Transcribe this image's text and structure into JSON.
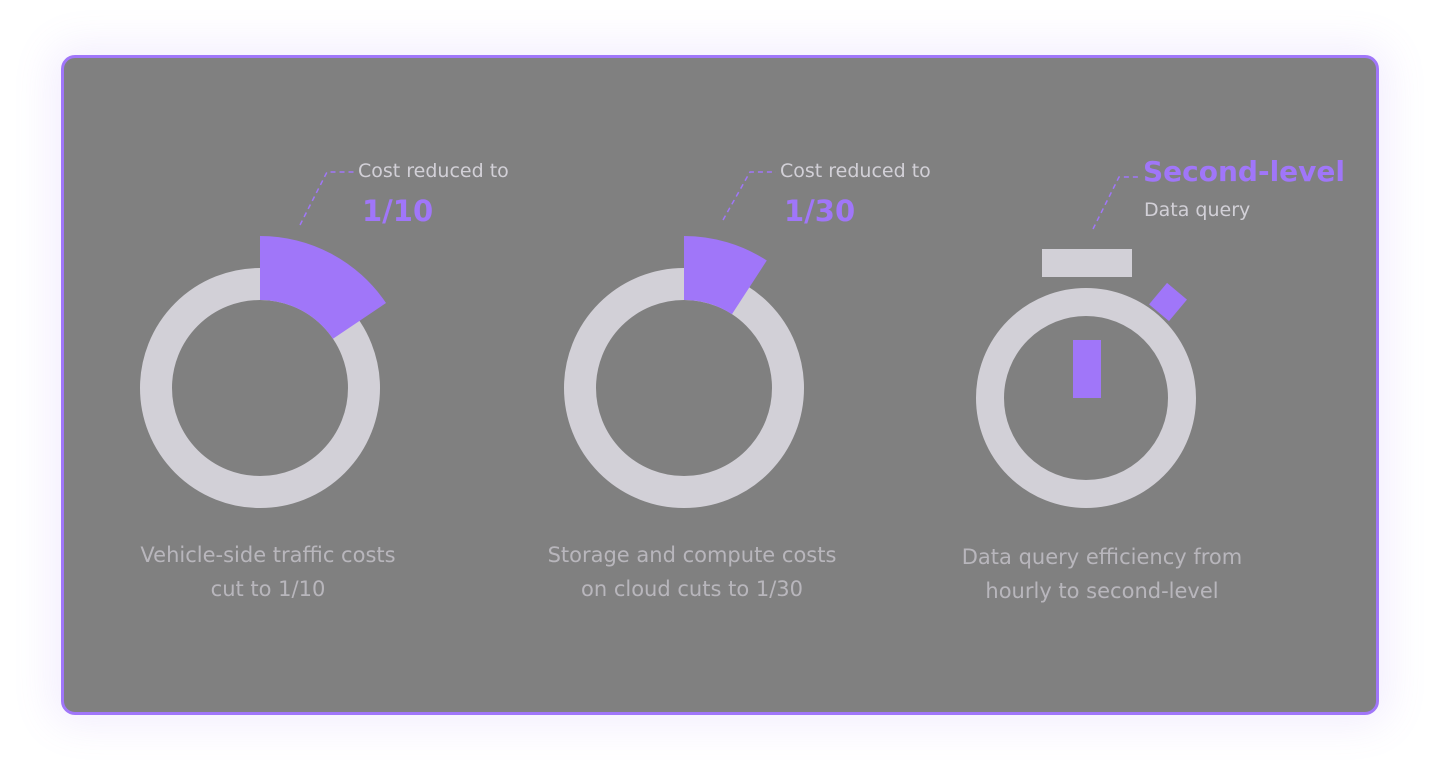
{
  "colors": {
    "accent": "#a076f9",
    "ring": "#d2d0d7",
    "background": "#808080"
  },
  "items": [
    {
      "label": "Cost reduced to",
      "value": "1/10",
      "caption_line1": "Vehicle-side traffic costs",
      "caption_line2": "cut to 1/10",
      "fraction": 0.1
    },
    {
      "label": "Cost reduced to",
      "value": "1/30",
      "caption_line1": "Storage and compute costs",
      "caption_line2": "on cloud cuts to 1/30",
      "fraction": 0.0333
    },
    {
      "label": "Data query",
      "value": "Second-level",
      "caption_line1": "Data query efficiency from",
      "caption_line2": "hourly to second-level",
      "icon": "stopwatch-icon"
    }
  ]
}
